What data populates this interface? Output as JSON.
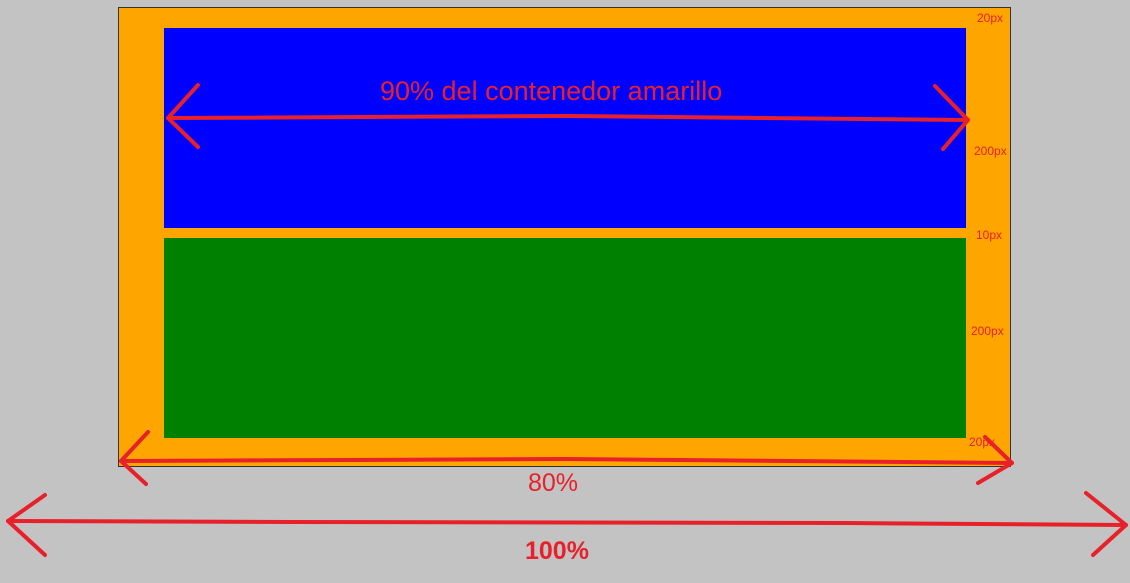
{
  "annotations": {
    "inner_width_label": "90% del contenedor amarillo",
    "outer_width_label": "80%",
    "page_width_label": "100%",
    "top_padding_label": "20px",
    "blue_height_label": "200px",
    "gap_label": "10px",
    "green_height_label": "200px",
    "bottom_padding_label": "20px"
  },
  "colors": {
    "page_background": "#c3c3c3",
    "container": "#ffa500",
    "block_top": "#0000ff",
    "block_bottom": "#008000",
    "annotation": "#e8202a"
  }
}
